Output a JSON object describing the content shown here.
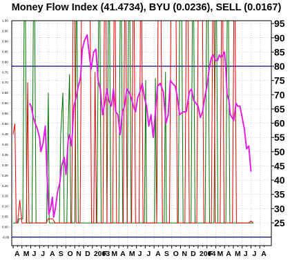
{
  "chart_data": {
    "type": "line",
    "title": "Money Flow Index (41.4734), BYU (0.0236), SELL (0.0167)",
    "colors": {
      "mfi": "#e020e0",
      "buy": "#007000",
      "sell": "#e00000",
      "reference_lines": "#00008b",
      "grid": "#a0a0a0",
      "background": "#ffffff"
    },
    "right_axis": {
      "ylim": [
        17,
        96
      ],
      "ticks": [
        "95",
        "90",
        "85",
        "80",
        "75",
        "70",
        "65",
        "60",
        "55",
        "50",
        "45",
        "40",
        "35",
        "30",
        "25"
      ]
    },
    "left_axis": {
      "ylim": [
        -0.09,
        1.0
      ],
      "ticks": [
        "1.00",
        "0.95",
        "0.90",
        "0.85",
        "0.80",
        "0.75",
        "0.70",
        "0.65",
        "0.60",
        "0.55",
        "0.50",
        "0.45",
        "0.40",
        "0.35",
        "0.30",
        "0.25",
        "0.20",
        "0.15",
        "0.10",
        "0.05",
        "0.00",
        "-0.05"
      ]
    },
    "reference_lines": [
      80,
      20
    ],
    "grid": true,
    "x": {
      "start": 0,
      "end": 58,
      "tick_labels": [
        {
          "label": "A",
          "pos": 0
        },
        {
          "label": "M",
          "pos": 2
        },
        {
          "label": "J",
          "pos": 4
        },
        {
          "label": "J",
          "pos": 6
        },
        {
          "label": "A",
          "pos": 8
        },
        {
          "label": "S",
          "pos": 10
        },
        {
          "label": "O",
          "pos": 12
        },
        {
          "label": "N",
          "pos": 14
        },
        {
          "label": "D",
          "pos": 16
        },
        {
          "label": "2003",
          "pos": 18
        },
        {
          "label": "F",
          "pos": 20
        },
        {
          "label": "M",
          "pos": 22
        },
        {
          "label": "A",
          "pos": 24
        },
        {
          "label": "M",
          "pos": 26
        },
        {
          "label": "J",
          "pos": 28
        },
        {
          "label": "J",
          "pos": 30
        },
        {
          "label": "A",
          "pos": 32
        },
        {
          "label": "S",
          "pos": 34
        },
        {
          "label": "O",
          "pos": 36
        },
        {
          "label": "N",
          "pos": 38
        },
        {
          "label": "D",
          "pos": 40
        },
        {
          "label": "2004",
          "pos": 42
        },
        {
          "label": "F",
          "pos": 44
        },
        {
          "label": "M",
          "pos": 46
        },
        {
          "label": "A",
          "pos": 48
        },
        {
          "label": "M",
          "pos": 50
        },
        {
          "label": "J",
          "pos": 52
        },
        {
          "label": "J",
          "pos": 54
        },
        {
          "label": "A",
          "pos": 56
        }
      ]
    },
    "series": [
      {
        "key": "mfi",
        "points": [
          [
            3.7,
            67
          ],
          [
            4.1,
            66
          ],
          [
            4.6,
            62
          ],
          [
            5.0,
            60
          ],
          [
            5.5,
            58
          ],
          [
            6.0,
            55
          ],
          [
            6.3,
            50
          ],
          [
            6.8,
            53
          ],
          [
            7.3,
            59
          ],
          [
            7.7,
            42
          ],
          [
            8.1,
            28
          ],
          [
            8.5,
            30
          ],
          [
            8.9,
            34
          ],
          [
            9.2,
            27
          ],
          [
            9.6,
            30
          ],
          [
            10.1,
            36
          ],
          [
            10.6,
            39
          ],
          [
            11.0,
            45
          ],
          [
            11.6,
            48
          ],
          [
            12.0,
            42
          ],
          [
            12.5,
            54
          ],
          [
            12.8,
            56
          ],
          [
            13.3,
            52
          ],
          [
            13.8,
            66
          ],
          [
            14.3,
            69
          ],
          [
            14.8,
            73
          ],
          [
            15.3,
            76
          ],
          [
            15.7,
            86
          ],
          [
            16.2,
            89
          ],
          [
            16.8,
            91
          ],
          [
            17.3,
            84
          ],
          [
            17.7,
            79
          ],
          [
            18.3,
            85
          ],
          [
            18.8,
            86
          ],
          [
            19.3,
            75
          ],
          [
            19.8,
            72
          ],
          [
            20.3,
            63
          ],
          [
            20.8,
            67
          ],
          [
            21.3,
            72
          ],
          [
            21.7,
            68
          ],
          [
            22.3,
            66
          ],
          [
            22.8,
            72
          ],
          [
            23.3,
            64
          ],
          [
            23.8,
            63
          ],
          [
            24.3,
            56
          ],
          [
            24.8,
            64
          ],
          [
            25.3,
            66
          ],
          [
            25.8,
            72
          ],
          [
            26.3,
            71
          ],
          [
            26.8,
            69
          ],
          [
            27.3,
            66
          ],
          [
            27.8,
            64
          ],
          [
            28.3,
            69
          ],
          [
            28.8,
            71
          ],
          [
            29.3,
            74
          ],
          [
            29.8,
            69
          ],
          [
            30.3,
            66
          ],
          [
            30.8,
            59
          ],
          [
            31.3,
            63
          ],
          [
            31.8,
            55
          ],
          [
            32.3,
            64
          ],
          [
            32.8,
            73
          ],
          [
            33.4,
            74
          ],
          [
            34.1,
            71
          ],
          [
            34.7,
            60
          ],
          [
            35.2,
            63
          ],
          [
            35.7,
            75
          ],
          [
            36.2,
            74
          ],
          [
            36.8,
            73
          ],
          [
            37.3,
            69
          ],
          [
            37.8,
            63
          ],
          [
            38.6,
            64
          ],
          [
            39.3,
            64
          ],
          [
            40.0,
            71
          ],
          [
            40.5,
            72
          ],
          [
            41.0,
            68
          ],
          [
            41.5,
            67
          ],
          [
            42.0,
            66
          ],
          [
            42.5,
            62
          ],
          [
            43.0,
            64
          ],
          [
            43.5,
            69
          ],
          [
            44.0,
            73
          ],
          [
            44.5,
            79
          ],
          [
            45.0,
            83
          ],
          [
            45.4,
            84
          ],
          [
            46.0,
            82
          ],
          [
            46.4,
            82
          ],
          [
            46.8,
            84
          ],
          [
            47.2,
            83
          ],
          [
            47.6,
            84
          ],
          [
            48.0,
            85
          ],
          [
            48.3,
            79
          ],
          [
            48.6,
            70
          ],
          [
            49.0,
            68
          ],
          [
            49.3,
            63
          ],
          [
            49.7,
            62
          ],
          [
            50.1,
            61
          ],
          [
            50.6,
            67
          ],
          [
            51.0,
            66
          ],
          [
            51.5,
            66
          ],
          [
            52.0,
            62
          ],
          [
            52.5,
            58
          ],
          [
            53.0,
            51
          ],
          [
            53.5,
            52
          ],
          [
            54.0,
            43
          ]
        ]
      },
      {
        "key": "buy",
        "points": [
          [
            0,
            0.02
          ],
          [
            1.1,
            0.02
          ],
          [
            1.3,
            0.04
          ],
          [
            2.2,
            0.04
          ],
          [
            2.5,
            1.0
          ],
          [
            2.8,
            1.0
          ],
          [
            3.1,
            0.02
          ],
          [
            4.3,
            0.02
          ],
          [
            4.6,
            1.0
          ],
          [
            4.9,
            1.0
          ],
          [
            5.2,
            0.02
          ],
          [
            7.6,
            0.02
          ],
          [
            8.0,
            0.65
          ],
          [
            8.2,
            0.02
          ],
          [
            10.5,
            0.02
          ],
          [
            10.8,
            0.45
          ],
          [
            11.3,
            0.65
          ],
          [
            11.6,
            0.02
          ],
          [
            12.2,
            0.02
          ],
          [
            12.5,
            0.48
          ],
          [
            12.8,
            0.74
          ],
          [
            13.1,
            0.02
          ],
          [
            14.0,
            0.02
          ],
          [
            14.3,
            1.0
          ],
          [
            14.5,
            1.0
          ],
          [
            14.8,
            0.02
          ],
          [
            19.0,
            0.02
          ],
          [
            19.4,
            1.0
          ],
          [
            19.7,
            1.0
          ],
          [
            20.0,
            0.02
          ],
          [
            21.3,
            0.02
          ],
          [
            21.6,
            1.0
          ],
          [
            21.9,
            1.0
          ],
          [
            22.2,
            0.02
          ],
          [
            24.0,
            0.02
          ],
          [
            24.3,
            1.0
          ],
          [
            24.6,
            1.0
          ],
          [
            24.9,
            0.02
          ],
          [
            25.9,
            0.02
          ],
          [
            26.2,
            1.0
          ],
          [
            26.5,
            1.0
          ],
          [
            26.8,
            0.02
          ],
          [
            29.8,
            0.02
          ],
          [
            30.1,
            0.71
          ],
          [
            30.3,
            0.02
          ],
          [
            32.1,
            0.02
          ],
          [
            32.3,
            0.72
          ],
          [
            32.6,
            0.02
          ],
          [
            34.3,
            0.02
          ],
          [
            34.6,
            0.75
          ],
          [
            34.8,
            0.02
          ],
          [
            37.5,
            0.02
          ],
          [
            37.8,
            1.0
          ],
          [
            38.3,
            1.0
          ],
          [
            38.6,
            0.02
          ],
          [
            40.4,
            0.02
          ],
          [
            40.7,
            1.0
          ],
          [
            41.0,
            1.0
          ],
          [
            41.3,
            0.02
          ],
          [
            43.6,
            0.02
          ],
          [
            43.9,
            1.0
          ],
          [
            44.3,
            1.0
          ],
          [
            44.6,
            0.02
          ],
          [
            45.6,
            0.02
          ],
          [
            45.9,
            1.0
          ],
          [
            46.2,
            1.0
          ],
          [
            46.5,
            0.02
          ],
          [
            48.3,
            0.02
          ],
          [
            48.6,
            1.0
          ],
          [
            48.9,
            1.0
          ],
          [
            49.2,
            0.02
          ],
          [
            54.5,
            0.02
          ]
        ]
      },
      {
        "key": "sell",
        "points": [
          [
            0,
            0.45
          ],
          [
            0.4,
            0.5
          ],
          [
            0.7,
            0.02
          ],
          [
            1.0,
            0.02
          ],
          [
            1.5,
            0.13
          ],
          [
            2.0,
            0.02
          ],
          [
            3.0,
            0.02
          ],
          [
            3.3,
            0.7
          ],
          [
            3.6,
            0.02
          ],
          [
            7.5,
            0.02
          ],
          [
            8.0,
            0.04
          ],
          [
            9.0,
            0.04
          ],
          [
            9.5,
            0.02
          ],
          [
            13.3,
            0.02
          ],
          [
            13.6,
            1.0
          ],
          [
            14.0,
            1.0
          ],
          [
            14.3,
            0.02
          ],
          [
            15.2,
            0.02
          ],
          [
            15.5,
            1.0
          ],
          [
            16.0,
            1.0
          ],
          [
            16.5,
            1.0
          ],
          [
            17.5,
            1.0
          ],
          [
            17.8,
            0.02
          ],
          [
            18.3,
            0.02
          ],
          [
            18.6,
            0.75
          ],
          [
            18.9,
            0.02
          ],
          [
            20.4,
            0.02
          ],
          [
            20.7,
            1.0
          ],
          [
            21.1,
            1.0
          ],
          [
            21.3,
            0.02
          ],
          [
            22.6,
            0.02
          ],
          [
            22.9,
            1.0
          ],
          [
            23.2,
            1.0
          ],
          [
            23.5,
            0.02
          ],
          [
            25.0,
            0.02
          ],
          [
            25.3,
            1.0
          ],
          [
            25.6,
            1.0
          ],
          [
            25.9,
            0.02
          ],
          [
            26.9,
            0.02
          ],
          [
            27.2,
            1.0
          ],
          [
            27.5,
            1.0
          ],
          [
            27.8,
            0.02
          ],
          [
            28.6,
            0.02
          ],
          [
            28.9,
            1.0
          ],
          [
            29.2,
            1.0
          ],
          [
            29.5,
            0.02
          ],
          [
            32.6,
            0.02
          ],
          [
            32.9,
            1.0
          ],
          [
            33.6,
            1.0
          ],
          [
            33.9,
            0.02
          ],
          [
            35.5,
            0.02
          ],
          [
            35.8,
            1.0
          ],
          [
            37.0,
            1.0
          ],
          [
            37.3,
            0.02
          ],
          [
            39.0,
            0.02
          ],
          [
            39.3,
            1.0
          ],
          [
            39.7,
            1.0
          ],
          [
            40.0,
            0.02
          ],
          [
            41.7,
            0.02
          ],
          [
            42.0,
            1.0
          ],
          [
            43.0,
            1.0
          ],
          [
            43.3,
            0.02
          ],
          [
            45.0,
            0.02
          ],
          [
            45.3,
            1.0
          ],
          [
            45.6,
            1.0
          ],
          [
            45.9,
            0.02
          ],
          [
            47.0,
            0.02
          ],
          [
            47.3,
            1.0
          ],
          [
            47.6,
            1.0
          ],
          [
            47.9,
            0.02
          ],
          [
            49.8,
            0.02
          ],
          [
            50.1,
            1.0
          ],
          [
            50.4,
            1.0
          ],
          [
            50.7,
            0.02
          ],
          [
            53.5,
            0.02
          ],
          [
            54.0,
            0.03
          ],
          [
            54.5,
            0.02
          ]
        ]
      }
    ]
  }
}
